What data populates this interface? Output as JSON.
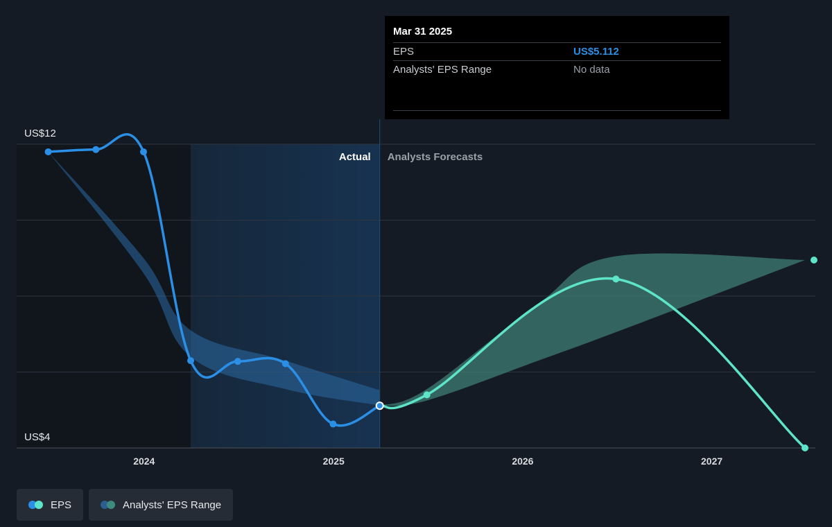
{
  "tooltip": {
    "date": "Mar 31 2025",
    "rows": [
      {
        "label": "EPS",
        "value": "US$5.112"
      },
      {
        "label": "Analysts' EPS Range",
        "value": "No data"
      }
    ]
  },
  "sections": {
    "actual": "Actual",
    "forecast": "Analysts Forecasts"
  },
  "legend": [
    {
      "label": "EPS",
      "colors": [
        "#2b8fe6",
        "#5ee5c9"
      ]
    },
    {
      "label": "Analysts' EPS Range",
      "colors": [
        "#2b5f8f",
        "#3f8a7e"
      ]
    }
  ],
  "colors": {
    "background": "#151b24",
    "eps_actual": "#2b8fe6",
    "eps_forecast": "#5ee5c9",
    "range_actual": "#2b6aa3",
    "range_forecast": "#3d7d73"
  },
  "chart_data": {
    "type": "line",
    "xlabel": "",
    "ylabel": "",
    "x_ticks": [
      2024,
      2025,
      2026,
      2027
    ],
    "y_tick_labels": [
      {
        "value": 12,
        "label": "US$12"
      },
      {
        "value": 4,
        "label": "US$4"
      }
    ],
    "xlim": [
      "2023-04-30",
      "2027-07-20"
    ],
    "ylim": [
      4,
      12
    ],
    "series": [
      {
        "name": "EPS",
        "kind": "actual",
        "points": [
          {
            "x": "2023-06-30",
            "y": 11.8
          },
          {
            "x": "2023-09-30",
            "y": 11.86
          },
          {
            "x": "2023-12-31",
            "y": 11.8
          },
          {
            "x": "2024-03-31",
            "y": 6.3
          },
          {
            "x": "2024-06-30",
            "y": 6.28
          },
          {
            "x": "2024-09-30",
            "y": 6.22
          },
          {
            "x": "2024-12-31",
            "y": 4.63
          },
          {
            "x": "2025-03-31",
            "y": 5.112
          }
        ]
      },
      {
        "name": "EPS",
        "kind": "forecast",
        "points": [
          {
            "x": "2025-03-31",
            "y": 5.112
          },
          {
            "x": "2025-06-30",
            "y": 5.4
          },
          {
            "x": "2026-06-30",
            "y": 8.45
          },
          {
            "x": "2027-06-30",
            "y": 4.0
          }
        ]
      }
    ],
    "range_actual": {
      "x": [
        "2023-06-30",
        "2023-12-31",
        "2024-03-31",
        "2024-09-30",
        "2025-03-31"
      ],
      "high": [
        11.8,
        9.0,
        7.1,
        6.3,
        5.52
      ],
      "low": [
        11.8,
        8.6,
        6.4,
        5.55,
        5.12
      ]
    },
    "range_forecast": {
      "x": [
        "2025-03-31",
        "2025-06-30",
        "2026-01-31",
        "2026-06-30",
        "2027-06-30"
      ],
      "high": [
        5.112,
        5.55,
        7.8,
        9.05,
        8.95
      ],
      "low": [
        5.112,
        5.25,
        6.3,
        7.05,
        8.95
      ]
    },
    "present_date": "2025-03-31",
    "shaded_start": "2024-03-31",
    "grid": true
  }
}
